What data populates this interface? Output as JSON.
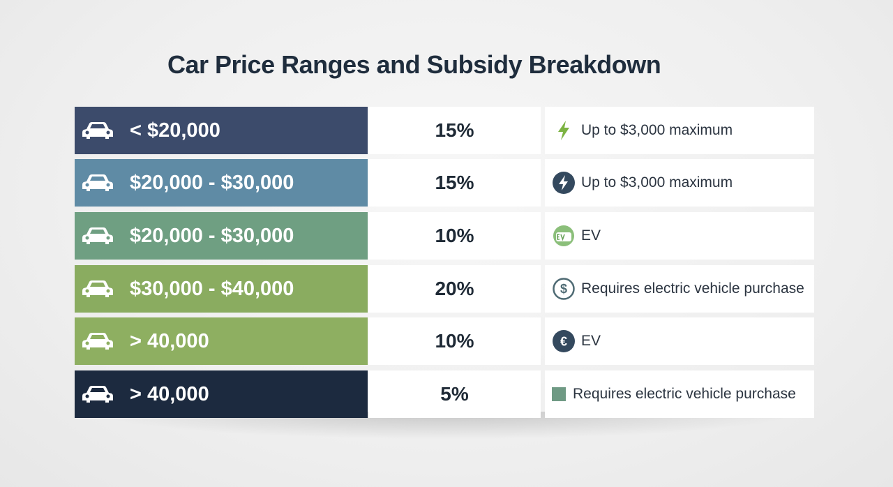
{
  "title": "Car Price Ranges and Subsidy Breakdown",
  "rows": [
    {
      "price": "< $20,000",
      "percent": "15%",
      "note": "Up to $3,000 maximum",
      "note_icon": "lightning-bolt-icon",
      "color": "#3c4b6b"
    },
    {
      "price": "$20,000 - $30,000",
      "percent": "15%",
      "note": "Up to $3,000 maximum",
      "note_icon": "lightning-circle-icon",
      "color": "#5f8ba5"
    },
    {
      "price": "$20,000 - $30,000",
      "percent": "10%",
      "note": "EV",
      "note_icon": "ev-badge-icon",
      "color": "#6f9f82"
    },
    {
      "price": "$30,000 - $40,000",
      "percent": "20%",
      "note": "Requires electric vehicle purchase",
      "note_icon": "dollar-circle-icon",
      "color": "#8aac60"
    },
    {
      "price": "> 40,000",
      "percent": "10%",
      "note": "EV",
      "note_icon": "euro-circle-icon",
      "color": "#8eaf61"
    },
    {
      "price": "> 40,000",
      "percent": "5%",
      "note": "Requires electric vehicle purchase",
      "note_icon": "green-square-icon",
      "color": "#1c2a3f"
    }
  ],
  "icon_colors": {
    "bolt": "#7cb342",
    "dark_circle": "#34495e",
    "ev_badge": "#8bbf7a",
    "dollar_ring": "#4e6a73",
    "square": "#6f9a84"
  }
}
